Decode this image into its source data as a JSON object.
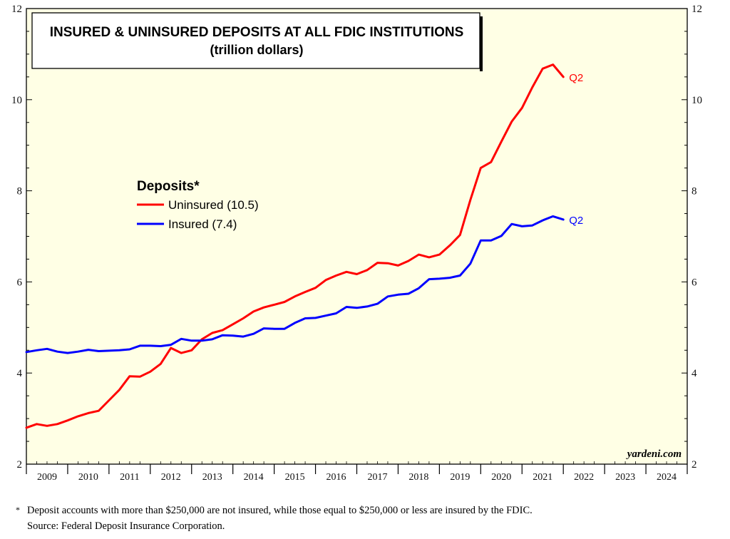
{
  "chart_data": {
    "type": "line",
    "title": "INSURED & UNINSURED DEPOSITS AT ALL FDIC INSTITUTIONS",
    "subtitle": "(trillion dollars)",
    "ylim": [
      2,
      12
    ],
    "yticks": [
      "2",
      "4",
      "6",
      "8",
      "10",
      "12"
    ],
    "xlim": [
      2009,
      2025
    ],
    "xticks": [
      "2009",
      "2010",
      "2011",
      "2012",
      "2013",
      "2014",
      "2015",
      "2016",
      "2017",
      "2018",
      "2019",
      "2020",
      "2021",
      "2022",
      "2023",
      "2024"
    ],
    "legend_title": "Deposits*",
    "legend_position": "upper-left",
    "grid": false,
    "series": [
      {
        "name": "Uninsured (10.5)",
        "color": "#ff0000",
        "end_label": "Q2",
        "points": [
          [
            2009.0,
            2.8
          ],
          [
            2009.25,
            2.88
          ],
          [
            2009.5,
            2.84
          ],
          [
            2009.75,
            2.88
          ],
          [
            2010.0,
            2.96
          ],
          [
            2010.25,
            3.05
          ],
          [
            2010.5,
            3.12
          ],
          [
            2010.75,
            3.17
          ],
          [
            2011.0,
            3.4
          ],
          [
            2011.25,
            3.63
          ],
          [
            2011.5,
            3.93
          ],
          [
            2011.75,
            3.92
          ],
          [
            2012.0,
            4.03
          ],
          [
            2012.25,
            4.2
          ],
          [
            2012.5,
            4.55
          ],
          [
            2012.75,
            4.44
          ],
          [
            2013.0,
            4.5
          ],
          [
            2013.25,
            4.74
          ],
          [
            2013.5,
            4.88
          ],
          [
            2013.75,
            4.94
          ],
          [
            2014.0,
            5.07
          ],
          [
            2014.25,
            5.2
          ],
          [
            2014.5,
            5.35
          ],
          [
            2014.75,
            5.44
          ],
          [
            2015.0,
            5.5
          ],
          [
            2015.25,
            5.56
          ],
          [
            2015.5,
            5.68
          ],
          [
            2015.75,
            5.78
          ],
          [
            2016.0,
            5.87
          ],
          [
            2016.25,
            6.04
          ],
          [
            2016.5,
            6.14
          ],
          [
            2016.75,
            6.22
          ],
          [
            2017.0,
            6.17
          ],
          [
            2017.25,
            6.26
          ],
          [
            2017.5,
            6.42
          ],
          [
            2017.75,
            6.41
          ],
          [
            2018.0,
            6.36
          ],
          [
            2018.25,
            6.46
          ],
          [
            2018.5,
            6.6
          ],
          [
            2018.75,
            6.54
          ],
          [
            2019.0,
            6.6
          ],
          [
            2019.25,
            6.8
          ],
          [
            2019.5,
            7.03
          ],
          [
            2019.75,
            7.8
          ],
          [
            2020.0,
            8.5
          ],
          [
            2020.25,
            8.63
          ],
          [
            2020.5,
            9.08
          ],
          [
            2020.75,
            9.52
          ],
          [
            2021.0,
            9.82
          ],
          [
            2021.25,
            10.27
          ],
          [
            2021.5,
            10.68
          ],
          [
            2021.75,
            10.77
          ],
          [
            2022.0,
            10.5
          ]
        ]
      },
      {
        "name": "Insured (7.4)",
        "color": "#0000ff",
        "end_label": "Q2",
        "points": [
          [
            2009.0,
            4.46
          ],
          [
            2009.25,
            4.5
          ],
          [
            2009.5,
            4.53
          ],
          [
            2009.75,
            4.47
          ],
          [
            2010.0,
            4.44
          ],
          [
            2010.25,
            4.47
          ],
          [
            2010.5,
            4.51
          ],
          [
            2010.75,
            4.48
          ],
          [
            2011.0,
            4.49
          ],
          [
            2011.25,
            4.5
          ],
          [
            2011.5,
            4.52
          ],
          [
            2011.75,
            4.6
          ],
          [
            2012.0,
            4.6
          ],
          [
            2012.25,
            4.59
          ],
          [
            2012.5,
            4.62
          ],
          [
            2012.75,
            4.75
          ],
          [
            2013.0,
            4.71
          ],
          [
            2013.25,
            4.71
          ],
          [
            2013.5,
            4.74
          ],
          [
            2013.75,
            4.83
          ],
          [
            2014.0,
            4.82
          ],
          [
            2014.25,
            4.8
          ],
          [
            2014.5,
            4.86
          ],
          [
            2014.75,
            4.98
          ],
          [
            2015.0,
            4.97
          ],
          [
            2015.25,
            4.97
          ],
          [
            2015.5,
            5.1
          ],
          [
            2015.75,
            5.2
          ],
          [
            2016.0,
            5.21
          ],
          [
            2016.25,
            5.26
          ],
          [
            2016.5,
            5.31
          ],
          [
            2016.75,
            5.45
          ],
          [
            2017.0,
            5.43
          ],
          [
            2017.25,
            5.46
          ],
          [
            2017.5,
            5.52
          ],
          [
            2017.75,
            5.68
          ],
          [
            2018.0,
            5.72
          ],
          [
            2018.25,
            5.74
          ],
          [
            2018.5,
            5.86
          ],
          [
            2018.75,
            6.06
          ],
          [
            2019.0,
            6.07
          ],
          [
            2019.25,
            6.09
          ],
          [
            2019.5,
            6.14
          ],
          [
            2019.75,
            6.4
          ],
          [
            2020.0,
            6.91
          ],
          [
            2020.25,
            6.91
          ],
          [
            2020.5,
            7.01
          ],
          [
            2020.75,
            7.27
          ],
          [
            2021.0,
            7.22
          ],
          [
            2021.25,
            7.24
          ],
          [
            2021.5,
            7.35
          ],
          [
            2021.75,
            7.44
          ],
          [
            2022.0,
            7.37
          ]
        ]
      }
    ]
  },
  "branding": {
    "text": "yardeni.com"
  },
  "footnotes": {
    "marker": "*",
    "note": "Deposit accounts with more than $250,000 are not insured, while those equal to $250,000 or less are insured by the FDIC.",
    "source": "Source: Federal Deposit Insurance Corporation."
  }
}
